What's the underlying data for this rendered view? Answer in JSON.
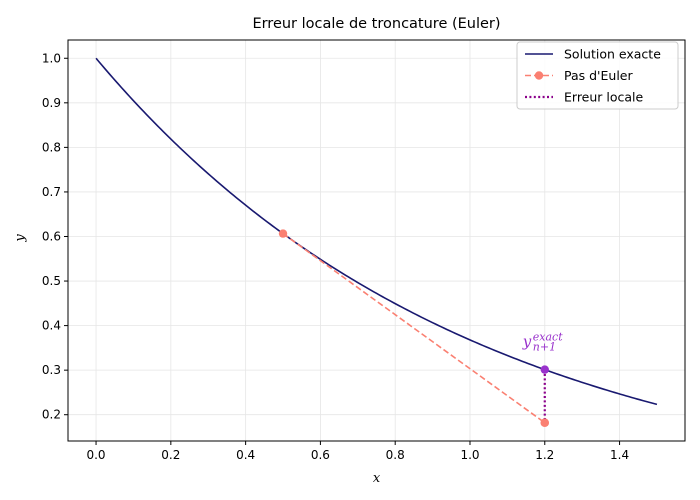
{
  "chart_data": {
    "type": "line",
    "title": "Erreur locale de troncature (Euler)",
    "xlabel": "x",
    "ylabel": "y",
    "xlim": [
      -0.075,
      1.575
    ],
    "ylim": [
      0.141,
      1.041
    ],
    "xticks": [
      0.0,
      0.2,
      0.4,
      0.6,
      0.8,
      1.0,
      1.2,
      1.4
    ],
    "xtick_labels": [
      "0.0",
      "0.2",
      "0.4",
      "0.6",
      "0.8",
      "1.0",
      "1.2",
      "1.4"
    ],
    "yticks": [
      0.2,
      0.3,
      0.4,
      0.5,
      0.6,
      0.7,
      0.8,
      0.9,
      1.0
    ],
    "ytick_labels": [
      "0.2",
      "0.3",
      "0.4",
      "0.5",
      "0.6",
      "0.7",
      "0.8",
      "0.9",
      "1.0"
    ],
    "grid": true,
    "legend_position": "top-right",
    "series": [
      {
        "name": "Solution exacte",
        "function": "exp(-x)",
        "x_range": [
          0.0,
          1.5
        ],
        "color": "#191970",
        "style": "solid"
      },
      {
        "name": "Pas d'Euler",
        "x": [
          0.5,
          1.2
        ],
        "y": [
          0.6065,
          0.182
        ],
        "color": "#FA8072",
        "style": "dashed",
        "marker": "circle"
      },
      {
        "name": "Erreur locale",
        "x": [
          1.2,
          1.2
        ],
        "y": [
          0.3012,
          0.182
        ],
        "color": "#8B008B",
        "style": "dotted"
      }
    ],
    "points": [
      {
        "x": 1.2,
        "y": 0.3012,
        "color": "#9932CC"
      }
    ],
    "annotation": {
      "base": "y",
      "sub": "n+1",
      "sup": "exact",
      "x": 1.2,
      "y": 0.3012,
      "color": "#9932CC"
    }
  }
}
